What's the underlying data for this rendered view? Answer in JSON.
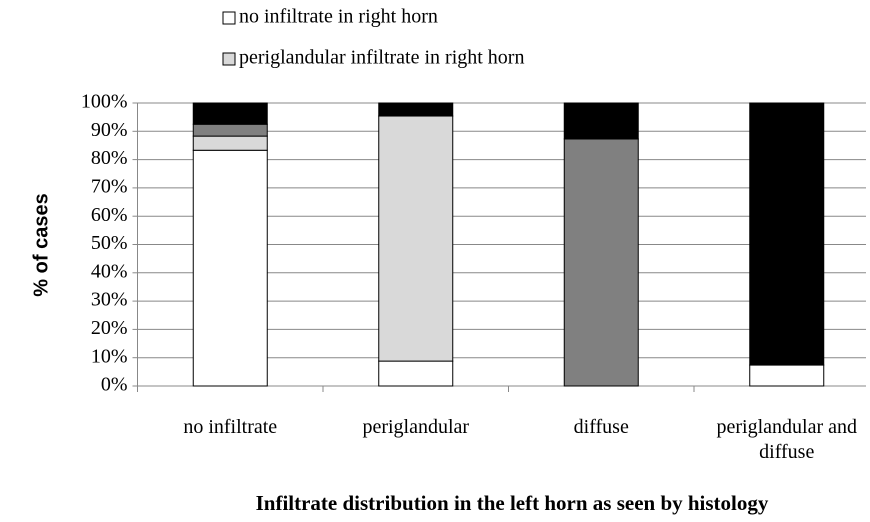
{
  "chart_data": {
    "type": "stacked_bar",
    "xlabel": "Infiltrate distribution in the left horn as seen by histology",
    "ylabel": "% of cases",
    "categories": [
      "no infiltrate",
      "periglandular",
      "diffuse",
      "periglandular and diffuse"
    ],
    "series": [
      {
        "name": "no infiltrate in right horn",
        "color": "#ffffff",
        "values": [
          83.3,
          8.8,
          0,
          7.4
        ]
      },
      {
        "name": "periglandular infiltrate in right horn",
        "color": "#d9d9d9",
        "values": [
          5.0,
          86.6,
          0,
          0
        ]
      },
      {
        "color": "#808080",
        "values": [
          4.2,
          0,
          87.3,
          0
        ]
      },
      {
        "color": "#000000",
        "values": [
          7.5,
          4.6,
          12.7,
          92.6
        ]
      }
    ],
    "ylim": [
      0,
      100
    ],
    "yticks": [
      {
        "value": 0,
        "label": "0%"
      },
      {
        "value": 10,
        "label": "10%"
      },
      {
        "value": 20,
        "label": "20%"
      },
      {
        "value": 30,
        "label": "30%"
      },
      {
        "value": 40,
        "label": "40%"
      },
      {
        "value": 50,
        "label": "50%"
      },
      {
        "value": 60,
        "label": "60%"
      },
      {
        "value": 70,
        "label": "70%"
      },
      {
        "value": 80,
        "label": "80%"
      },
      {
        "value": 90,
        "label": "90%"
      },
      {
        "value": 100,
        "label": "100%"
      }
    ],
    "grid": true
  }
}
